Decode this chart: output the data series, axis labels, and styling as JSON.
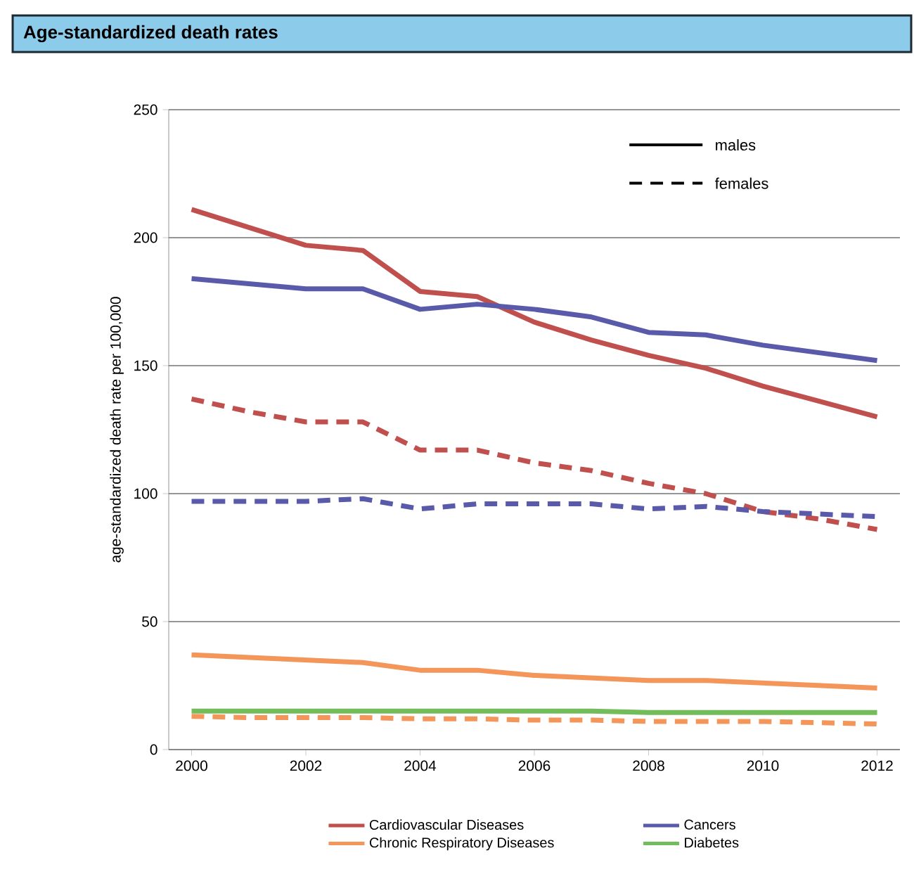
{
  "chart_data": {
    "type": "line",
    "title": "Age-standardized death rates",
    "ylabel": "age-standardized death rate per 100,000",
    "x": [
      2000,
      2001,
      2002,
      2003,
      2004,
      2005,
      2006,
      2007,
      2008,
      2009,
      2010,
      2011,
      2012
    ],
    "xlim": [
      1999.6,
      2012.4
    ],
    "xticks": [
      2000,
      2002,
      2004,
      2006,
      2008,
      2010,
      2012
    ],
    "ylim": [
      0,
      250
    ],
    "yticks": [
      0,
      50,
      100,
      150,
      200,
      250
    ],
    "grid": "y",
    "legend": "bottom",
    "annotations": [
      "males",
      "females"
    ],
    "series": [
      {
        "name": "Cardiovascular Diseases",
        "color": "#c0504d",
        "line_style": "solid",
        "values": [
          211,
          204,
          197,
          195,
          179,
          177,
          167,
          160,
          154,
          149,
          142,
          136,
          130
        ]
      },
      {
        "color": "#c0504d",
        "line_style": "dashed",
        "values": [
          137,
          132,
          128,
          128,
          117,
          117,
          112,
          109,
          104,
          100,
          93,
          90,
          86
        ]
      },
      {
        "name": "Cancers",
        "color": "#5a5aaa",
        "line_style": "solid",
        "values": [
          184,
          182,
          180,
          180,
          172,
          174,
          172,
          169,
          163,
          162,
          158,
          155,
          152
        ]
      },
      {
        "color": "#5a5aaa",
        "line_style": "dashed",
        "values": [
          97,
          97,
          97,
          98,
          94,
          96,
          96,
          96,
          94,
          95,
          93,
          92,
          91
        ]
      },
      {
        "name": "Chronic Respiratory Diseases",
        "color": "#f4955a",
        "line_style": "solid",
        "values": [
          37,
          36,
          35,
          34,
          31,
          31,
          29,
          28,
          27,
          27,
          26,
          25,
          24
        ]
      },
      {
        "color": "#f4955a",
        "line_style": "dashed",
        "values": [
          13,
          12.5,
          12.5,
          12.5,
          12,
          12,
          11.5,
          11.5,
          11,
          11,
          11,
          10.5,
          10
        ]
      },
      {
        "name": "Diabetes",
        "color": "#72bd5a",
        "line_style": "solid",
        "values": [
          15,
          15,
          15,
          15,
          15,
          15,
          15,
          15,
          14.5,
          14.5,
          14.5,
          14.5,
          14.5
        ]
      }
    ]
  }
}
